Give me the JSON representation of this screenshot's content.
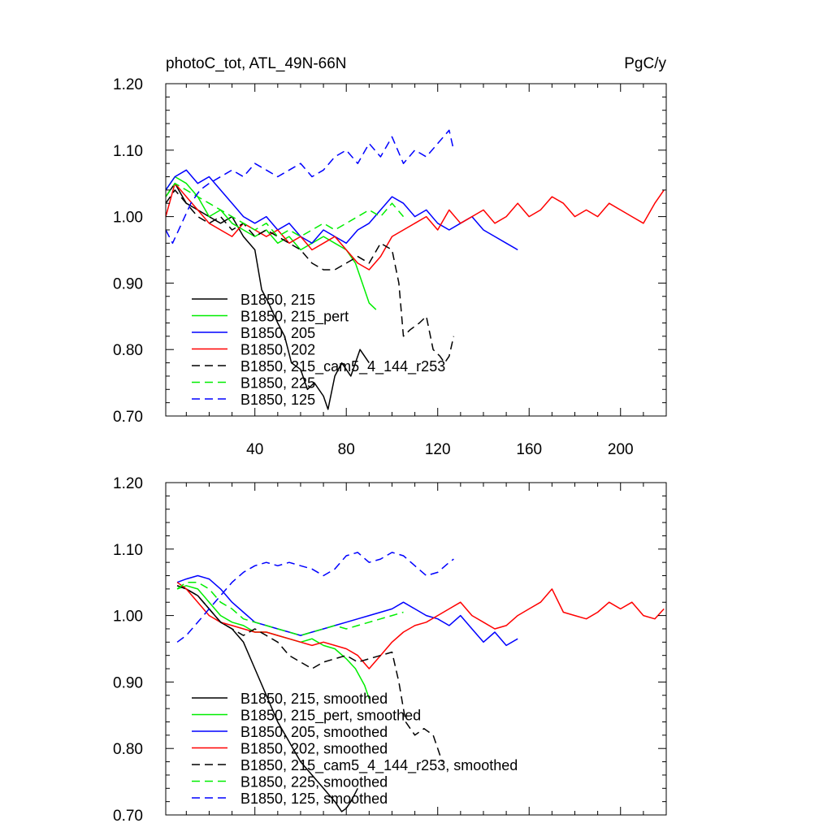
{
  "header": {
    "title": "photoC_tot, ATL_49N-66N",
    "units": "PgC/y"
  },
  "chart_data": [
    {
      "type": "line",
      "panel": "top",
      "title": "photoC_tot, ATL_49N-66N",
      "units": "PgC/y",
      "xlim": [
        1,
        220
      ],
      "ylim": [
        0.7,
        1.2
      ],
      "xticks": [
        40,
        80,
        120,
        160,
        200
      ],
      "xtick_labels": [
        "40",
        "80",
        "120",
        "160",
        "200"
      ],
      "yticks": [
        0.7,
        0.8,
        0.9,
        1.0,
        1.1,
        1.2
      ],
      "ytick_labels": [
        "0.70",
        "0.80",
        "0.90",
        "1.00",
        "1.10",
        "1.20"
      ],
      "legend_position": "bottom-left",
      "series": [
        {
          "name": "B1850, 215",
          "color": "#000000",
          "dash": "solid",
          "x": [
            1,
            5,
            10,
            15,
            20,
            25,
            30,
            35,
            40,
            43,
            46,
            50,
            53,
            56,
            60,
            63,
            66,
            70,
            72,
            75,
            78,
            82,
            86,
            90
          ],
          "y": [
            1.03,
            1.05,
            1.02,
            1.01,
            1.0,
            0.99,
            1.0,
            0.97,
            0.95,
            0.89,
            0.87,
            0.84,
            0.82,
            0.78,
            0.77,
            0.74,
            0.75,
            0.73,
            0.71,
            0.76,
            0.78,
            0.76,
            0.8,
            0.78
          ]
        },
        {
          "name": "B1850, 215_pert",
          "color": "#00ee00",
          "dash": "solid",
          "x": [
            1,
            5,
            10,
            15,
            20,
            25,
            30,
            35,
            40,
            45,
            50,
            55,
            60,
            65,
            70,
            75,
            80,
            84,
            87,
            90,
            93
          ],
          "y": [
            1.04,
            1.06,
            1.05,
            1.03,
            1.0,
            1.01,
            0.99,
            0.98,
            0.97,
            0.98,
            0.96,
            0.97,
            0.95,
            0.96,
            0.97,
            0.96,
            0.95,
            0.93,
            0.9,
            0.87,
            0.86
          ]
        },
        {
          "name": "B1850, 205",
          "color": "#0000ff",
          "dash": "solid",
          "x": [
            1,
            5,
            10,
            15,
            20,
            25,
            30,
            35,
            40,
            45,
            50,
            55,
            60,
            65,
            70,
            75,
            80,
            85,
            90,
            95,
            100,
            105,
            110,
            115,
            120,
            125,
            130,
            135,
            140,
            145,
            150,
            155
          ],
          "y": [
            1.04,
            1.06,
            1.07,
            1.05,
            1.06,
            1.04,
            1.02,
            1.0,
            0.99,
            1.0,
            0.98,
            0.99,
            0.97,
            0.96,
            0.98,
            0.97,
            0.96,
            0.98,
            0.99,
            1.01,
            1.03,
            1.02,
            1.0,
            1.01,
            0.99,
            0.98,
            0.99,
            1.0,
            0.98,
            0.97,
            0.96,
            0.95
          ]
        },
        {
          "name": "B1850, 202",
          "color": "#ff0000",
          "dash": "solid",
          "x": [
            1,
            5,
            10,
            15,
            20,
            25,
            30,
            35,
            40,
            45,
            50,
            55,
            60,
            65,
            70,
            75,
            80,
            85,
            90,
            95,
            100,
            105,
            110,
            115,
            120,
            125,
            130,
            135,
            140,
            145,
            150,
            155,
            160,
            165,
            170,
            175,
            180,
            185,
            190,
            195,
            200,
            205,
            210,
            215,
            219
          ],
          "y": [
            1.0,
            1.05,
            1.03,
            1.01,
            0.99,
            0.98,
            0.97,
            0.99,
            0.98,
            0.97,
            0.98,
            0.96,
            0.97,
            0.95,
            0.96,
            0.97,
            0.95,
            0.93,
            0.92,
            0.94,
            0.97,
            0.98,
            0.99,
            1.0,
            0.98,
            1.01,
            0.99,
            1.0,
            1.01,
            0.99,
            1.0,
            1.02,
            1.0,
            1.01,
            1.03,
            1.02,
            1.0,
            1.01,
            1.0,
            1.02,
            1.01,
            1.0,
            0.99,
            1.02,
            1.04
          ]
        },
        {
          "name": "B1850, 215_cam5_4_144_r253",
          "color": "#000000",
          "dash": "dash",
          "x": [
            1,
            5,
            10,
            15,
            20,
            25,
            30,
            35,
            40,
            45,
            50,
            55,
            60,
            65,
            70,
            75,
            80,
            85,
            90,
            95,
            100,
            103,
            105,
            108,
            112,
            115,
            118,
            121,
            123,
            125,
            127
          ],
          "y": [
            1.02,
            1.04,
            1.02,
            1.0,
            0.99,
            1.0,
            0.98,
            0.99,
            0.97,
            0.98,
            0.97,
            0.96,
            0.95,
            0.93,
            0.92,
            0.92,
            0.93,
            0.94,
            0.93,
            0.96,
            0.95,
            0.9,
            0.82,
            0.83,
            0.84,
            0.85,
            0.8,
            0.79,
            0.78,
            0.79,
            0.82
          ]
        },
        {
          "name": "B1850, 225",
          "color": "#00ee00",
          "dash": "dash",
          "x": [
            1,
            5,
            10,
            15,
            20,
            25,
            30,
            35,
            40,
            45,
            50,
            55,
            60,
            65,
            70,
            75,
            80,
            85,
            90,
            95,
            100,
            105
          ],
          "y": [
            1.03,
            1.05,
            1.04,
            1.03,
            1.02,
            1.01,
            1.0,
            0.99,
            0.98,
            0.99,
            0.97,
            0.98,
            0.97,
            0.98,
            0.99,
            0.98,
            0.99,
            1.0,
            1.01,
            1.0,
            1.02,
            1.0
          ]
        },
        {
          "name": "B1850, 125",
          "color": "#0000ff",
          "dash": "dash",
          "x": [
            1,
            4,
            8,
            12,
            16,
            20,
            25,
            30,
            35,
            40,
            45,
            50,
            55,
            60,
            65,
            70,
            75,
            80,
            85,
            90,
            95,
            100,
            105,
            110,
            115,
            120,
            125,
            127
          ],
          "y": [
            0.98,
            0.96,
            0.99,
            1.02,
            1.04,
            1.05,
            1.06,
            1.07,
            1.06,
            1.08,
            1.07,
            1.06,
            1.07,
            1.08,
            1.06,
            1.07,
            1.09,
            1.1,
            1.08,
            1.11,
            1.09,
            1.12,
            1.08,
            1.1,
            1.09,
            1.11,
            1.13,
            1.1
          ]
        }
      ]
    },
    {
      "type": "line",
      "panel": "bottom",
      "xlim": [
        1,
        220
      ],
      "ylim": [
        0.7,
        1.2
      ],
      "xticks": [
        40,
        80,
        120,
        160,
        200
      ],
      "yticks": [
        0.7,
        0.8,
        0.9,
        1.0,
        1.1,
        1.2
      ],
      "ytick_labels": [
        "0.70",
        "0.80",
        "0.90",
        "1.00",
        "1.10",
        "1.20"
      ],
      "legend_position": "bottom-left",
      "series": [
        {
          "name": "B1850, 215, smoothed",
          "color": "#000000",
          "dash": "solid",
          "x": [
            6,
            10,
            15,
            20,
            25,
            30,
            35,
            40,
            45,
            50,
            55,
            60,
            65,
            70,
            75,
            78,
            80,
            82,
            85
          ],
          "y": [
            1.045,
            1.04,
            1.03,
            1.01,
            0.99,
            0.98,
            0.96,
            0.92,
            0.88,
            0.84,
            0.81,
            0.78,
            0.76,
            0.74,
            0.72,
            0.705,
            0.71,
            0.72,
            0.74
          ]
        },
        {
          "name": "B1850, 215_pert, smoothed",
          "color": "#00ee00",
          "dash": "solid",
          "x": [
            6,
            10,
            15,
            20,
            25,
            30,
            35,
            40,
            45,
            50,
            55,
            60,
            65,
            70,
            75,
            80,
            84,
            88,
            90
          ],
          "y": [
            1.04,
            1.045,
            1.04,
            1.02,
            1.0,
            0.99,
            0.985,
            0.975,
            0.975,
            0.97,
            0.965,
            0.96,
            0.965,
            0.955,
            0.95,
            0.935,
            0.92,
            0.895,
            0.875
          ]
        },
        {
          "name": "B1850, 205, smoothed",
          "color": "#0000ff",
          "dash": "solid",
          "x": [
            6,
            10,
            15,
            20,
            25,
            30,
            35,
            40,
            45,
            50,
            55,
            60,
            65,
            70,
            75,
            80,
            85,
            90,
            95,
            100,
            105,
            110,
            115,
            120,
            125,
            130,
            135,
            140,
            145,
            150,
            155
          ],
          "y": [
            1.05,
            1.055,
            1.06,
            1.055,
            1.04,
            1.02,
            1.005,
            0.99,
            0.985,
            0.98,
            0.975,
            0.97,
            0.975,
            0.98,
            0.985,
            0.99,
            0.995,
            1.0,
            1.005,
            1.01,
            1.02,
            1.01,
            1.0,
            0.995,
            0.985,
            1.0,
            0.98,
            0.96,
            0.975,
            0.955,
            0.965
          ]
        },
        {
          "name": "B1850, 202, smoothed",
          "color": "#ff0000",
          "dash": "solid",
          "x": [
            6,
            10,
            15,
            20,
            25,
            30,
            35,
            40,
            45,
            50,
            55,
            60,
            65,
            70,
            75,
            80,
            85,
            90,
            95,
            100,
            105,
            110,
            115,
            120,
            125,
            130,
            135,
            140,
            145,
            150,
            155,
            160,
            165,
            170,
            175,
            180,
            185,
            190,
            195,
            200,
            205,
            210,
            215,
            219
          ],
          "y": [
            1.05,
            1.04,
            1.02,
            1.0,
            0.99,
            0.985,
            0.98,
            0.975,
            0.975,
            0.97,
            0.965,
            0.96,
            0.955,
            0.96,
            0.955,
            0.95,
            0.94,
            0.92,
            0.94,
            0.96,
            0.975,
            0.985,
            0.99,
            1.0,
            1.01,
            1.02,
            1.0,
            0.99,
            0.98,
            0.985,
            1.0,
            1.01,
            1.02,
            1.04,
            1.005,
            1.0,
            0.995,
            1.005,
            1.02,
            1.01,
            1.02,
            1.0,
            0.995,
            1.01
          ]
        },
        {
          "name": "B1850, 215_cam5_4_144_r253, smoothed",
          "color": "#000000",
          "dash": "dash",
          "x": [
            6,
            10,
            15,
            20,
            25,
            30,
            35,
            40,
            45,
            50,
            55,
            60,
            65,
            70,
            75,
            80,
            85,
            90,
            95,
            100,
            103,
            106,
            110,
            114,
            118,
            122
          ],
          "y": [
            1.045,
            1.04,
            1.03,
            1.01,
            0.99,
            0.98,
            0.97,
            0.98,
            0.97,
            0.96,
            0.94,
            0.93,
            0.92,
            0.93,
            0.935,
            0.94,
            0.93,
            0.935,
            0.94,
            0.945,
            0.9,
            0.84,
            0.82,
            0.83,
            0.82,
            0.78
          ]
        },
        {
          "name": "B1850, 225, smoothed",
          "color": "#00ee00",
          "dash": "dash",
          "x": [
            6,
            10,
            15,
            20,
            25,
            30,
            35,
            40,
            45,
            50,
            55,
            60,
            65,
            70,
            75,
            80,
            85,
            90,
            95,
            100,
            105
          ],
          "y": [
            1.04,
            1.05,
            1.05,
            1.04,
            1.02,
            1.01,
            0.995,
            0.99,
            0.985,
            0.98,
            0.975,
            0.97,
            0.975,
            0.98,
            0.985,
            0.98,
            0.985,
            0.99,
            0.995,
            1.0,
            1.005
          ]
        },
        {
          "name": "B1850, 125, smoothed",
          "color": "#0000ff",
          "dash": "dash",
          "x": [
            6,
            10,
            15,
            20,
            25,
            30,
            35,
            40,
            45,
            50,
            55,
            60,
            65,
            70,
            75,
            80,
            85,
            90,
            95,
            100,
            105,
            110,
            115,
            120,
            125,
            127
          ],
          "y": [
            0.96,
            0.97,
            0.99,
            1.01,
            1.03,
            1.05,
            1.065,
            1.075,
            1.08,
            1.075,
            1.08,
            1.075,
            1.07,
            1.06,
            1.07,
            1.09,
            1.095,
            1.08,
            1.085,
            1.095,
            1.09,
            1.075,
            1.06,
            1.065,
            1.08,
            1.085
          ]
        }
      ]
    }
  ]
}
